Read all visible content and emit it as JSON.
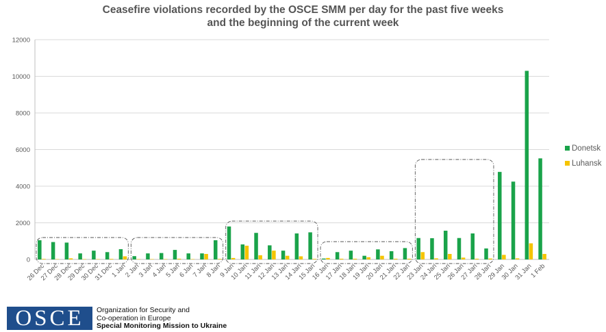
{
  "chart_data": {
    "type": "bar",
    "title_lines": [
      "Ceasefire violations recorded by the OSCE SMM per day for the past five weeks",
      "and the beginning of the current week"
    ],
    "categories": [
      "26 Dec",
      "27 Dec",
      "28 Dec",
      "29 Dec",
      "30 Dec",
      "31 Dec",
      "1 Jan",
      "2 Jan",
      "3 Jan",
      "4 Jan",
      "5 Jan",
      "6 Jan",
      "7 Jan",
      "8 Jan",
      "9 Jan",
      "10 Jan",
      "11 Jan",
      "12 Jan",
      "13 Jan",
      "14 Jan",
      "15 Jan",
      "16 Jan",
      "17 Jan",
      "18 Jan",
      "19 Jan",
      "20 Jan",
      "21 Jan",
      "22 Jan",
      "23 Jan",
      "24 Jan",
      "25 Jan",
      "26 Jan",
      "27 Jan",
      "28 Jan",
      "29 Jan",
      "30 Jan",
      "31 Jan",
      "1 Feb"
    ],
    "series": [
      {
        "name": "Donetsk",
        "color": "#1aa34a",
        "values": [
          1050,
          950,
          920,
          330,
          480,
          400,
          560,
          180,
          330,
          350,
          520,
          330,
          330,
          1050,
          1800,
          820,
          1450,
          770,
          480,
          1420,
          1480,
          50,
          400,
          480,
          200,
          550,
          450,
          620,
          1170,
          1160,
          1570,
          1170,
          1420,
          600,
          4780,
          4250,
          10300,
          5520
        ]
      },
      {
        "name": "Luhansk",
        "color": "#f5c400",
        "values": [
          30,
          20,
          60,
          20,
          20,
          30,
          170,
          20,
          20,
          20,
          40,
          20,
          300,
          30,
          80,
          750,
          230,
          480,
          200,
          170,
          30,
          80,
          40,
          40,
          120,
          200,
          40,
          40,
          400,
          60,
          300,
          100,
          40,
          50,
          250,
          60,
          880,
          300
        ]
      }
    ],
    "ylim": [
      0,
      12000
    ],
    "yticks": [
      0,
      2000,
      4000,
      6000,
      8000,
      10000,
      12000
    ],
    "grid": true,
    "legend_position": "right",
    "week_groups": [
      [
        0,
        6
      ],
      [
        7,
        13
      ],
      [
        14,
        20
      ],
      [
        21,
        27
      ],
      [
        28,
        33
      ]
    ]
  },
  "logo": {
    "acronym": "OSCE",
    "line1": "Organization for Security and",
    "line2": "Co-operation in Europe",
    "line3": "Special Monitoring Mission to Ukraine"
  }
}
